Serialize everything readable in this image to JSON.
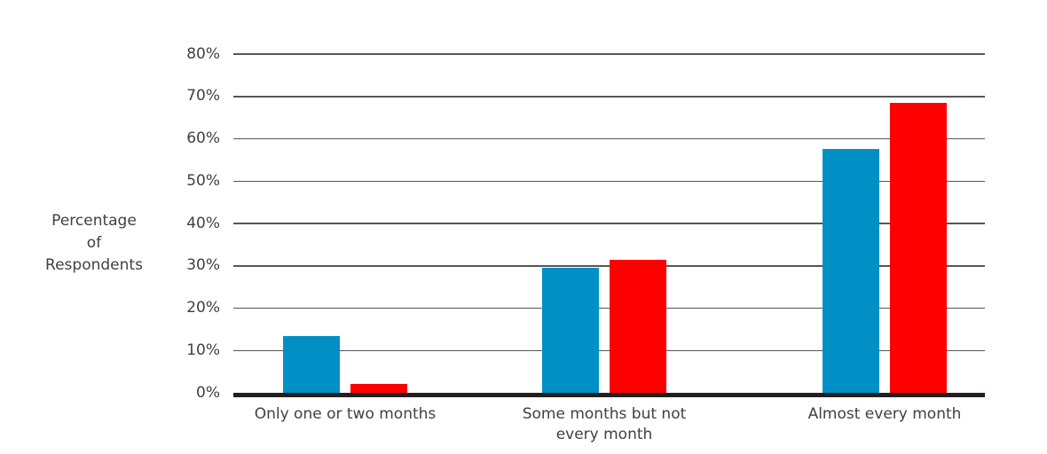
{
  "chart_data": {
    "type": "bar",
    "title": "",
    "ylabel": "Percentage of Respondents",
    "ylabel_lines": [
      "Percentage",
      "of",
      "Respondents"
    ],
    "categories": [
      "Only one or two months",
      "Some months but not\nevery month",
      "Almost every month"
    ],
    "series": [
      {
        "name": "blue",
        "color": "#0090c6",
        "values": [
          13.5,
          29.5,
          57.5
        ]
      },
      {
        "name": "red",
        "color": "#fe0000",
        "values": [
          2,
          31.5,
          68.5
        ]
      }
    ],
    "ylim": [
      0,
      80
    ],
    "ytick_step": 10,
    "ytick_labels": [
      "0%",
      "10%",
      "20%",
      "30%",
      "40%",
      "50%",
      "60%",
      "70%",
      "80%"
    ],
    "grid": true,
    "legend": false,
    "axis_colors": {
      "gridline": "#55565a",
      "baseline": "#231f20",
      "text": "#414042"
    }
  }
}
